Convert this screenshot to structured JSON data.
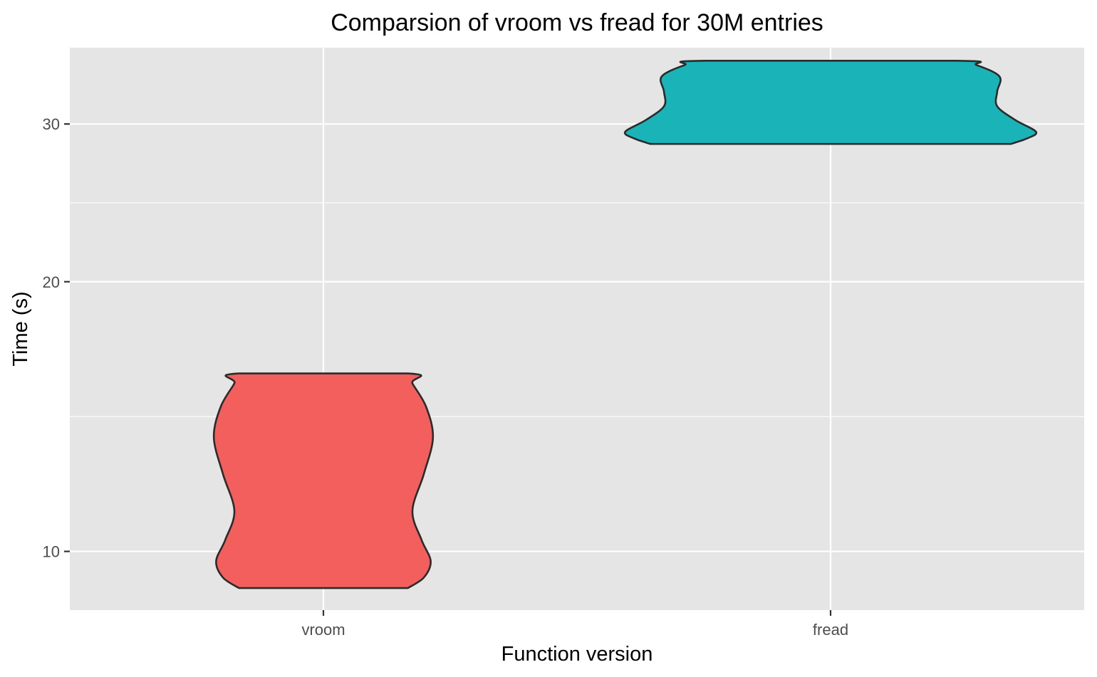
{
  "chart_data": {
    "type": "violin",
    "title": "Comparsion of vroom vs fread for 30M entries",
    "xlabel": "Function version",
    "ylabel": "Time (s)",
    "y_scale": "log",
    "ylim": [
      8.6,
      36.5
    ],
    "y_ticks": [
      10,
      20,
      30
    ],
    "y_tick_labels": [
      "10",
      "20",
      "30"
    ],
    "categories": [
      "vroom",
      "fread"
    ],
    "grid": true,
    "background": "#e5e5e5",
    "series": [
      {
        "category": "vroom",
        "color": "#f35f5c",
        "min": 9.1,
        "max": 15.8,
        "profile": [
          {
            "y": 9.1,
            "w": 0.37
          },
          {
            "y": 9.35,
            "w": 0.44
          },
          {
            "y": 9.75,
            "w": 0.47
          },
          {
            "y": 10.3,
            "w": 0.43
          },
          {
            "y": 11.1,
            "w": 0.39
          },
          {
            "y": 12.2,
            "w": 0.44
          },
          {
            "y": 13.4,
            "w": 0.48
          },
          {
            "y": 14.5,
            "w": 0.45
          },
          {
            "y": 15.4,
            "w": 0.39
          },
          {
            "y": 15.8,
            "w": 0.37
          }
        ]
      },
      {
        "category": "fread",
        "color": "#19b3b8",
        "min": 28.5,
        "max": 35.3,
        "profile": [
          {
            "y": 28.5,
            "w": 0.79
          },
          {
            "y": 28.9,
            "w": 0.86
          },
          {
            "y": 29.4,
            "w": 0.9
          },
          {
            "y": 30.3,
            "w": 0.81
          },
          {
            "y": 31.4,
            "w": 0.73
          },
          {
            "y": 32.6,
            "w": 0.73
          },
          {
            "y": 33.9,
            "w": 0.74
          },
          {
            "y": 34.9,
            "w": 0.64
          },
          {
            "y": 35.3,
            "w": 0.55
          }
        ]
      }
    ]
  }
}
